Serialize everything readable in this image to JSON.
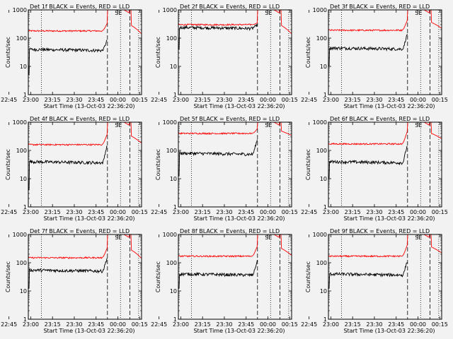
{
  "colors": {
    "background": "#f2f2f2",
    "events": "#000000",
    "lld": "#ff0000",
    "axis": "#000000"
  },
  "chart_data": {
    "type": "line",
    "ylog": true,
    "ylim": [
      1,
      1000
    ],
    "yticks": [
      1,
      10,
      100,
      1000
    ],
    "ytick_labels": [
      "1",
      "10",
      "100",
      "1000"
    ],
    "ylabel": "Counts/sec",
    "xlabel": "Start Time (13-Oct-03 22:36:20)",
    "xlim_minutes": [
      22.0,
      100.0
    ],
    "xticks_minutes": [
      8.67,
      23.67,
      38.67,
      53.67,
      68.67,
      83.67,
      98.67
    ],
    "xtick_labels": [
      "22:45",
      "23:00",
      "23:15",
      "23:30",
      "23:45",
      "00:00",
      "00:15"
    ],
    "annotation": "SE",
    "dotted_lines_minutes": [
      31.0,
      85.5,
      98.0
    ],
    "dashed_lines_minutes": [
      76.5,
      92.0
    ],
    "panels": [
      {
        "title": "Det 1f BLACK = Events, RED = LLD",
        "events_level": 40,
        "lld_level": 180,
        "events_spike": 90,
        "lld_spike": 350,
        "events_start": 5
      },
      {
        "title": "Det 2f BLACK = Events, RED = LLD",
        "events_level": 240,
        "lld_level": 300,
        "events_spike": 300,
        "lld_spike": 350,
        "events_start": 40
      },
      {
        "title": "Det 3f BLACK = Events, RED = LLD",
        "events_level": 45,
        "lld_level": 190,
        "events_spike": 150,
        "lld_spike": 450,
        "events_start": 10
      },
      {
        "title": "Det 4f BLACK = Events, RED = LLD",
        "events_level": 40,
        "lld_level": 160,
        "events_spike": 160,
        "lld_spike": 400,
        "events_start": 4
      },
      {
        "title": "Det 5f BLACK = Events, RED = LLD",
        "events_level": 80,
        "lld_level": 400,
        "events_spike": 250,
        "lld_spike": 600,
        "events_start": 12
      },
      {
        "title": "Det 6f BLACK = Events, RED = LLD",
        "events_level": 40,
        "lld_level": 170,
        "events_spike": 160,
        "lld_spike": 500,
        "events_start": 10
      },
      {
        "title": "Det 7f BLACK = Events, RED = LLD",
        "events_level": 55,
        "lld_level": 150,
        "events_spike": 160,
        "lld_spike": 350,
        "events_start": 12
      },
      {
        "title": "Det 8f BLACK = Events, RED = LLD",
        "events_level": 40,
        "lld_level": 170,
        "events_spike": 120,
        "lld_spike": 400,
        "events_start": 12
      },
      {
        "title": "Det 9f BLACK = Events, RED = LLD",
        "events_level": 40,
        "lld_level": 170,
        "events_spike": 120,
        "lld_spike": 450,
        "events_start": 12
      }
    ]
  }
}
